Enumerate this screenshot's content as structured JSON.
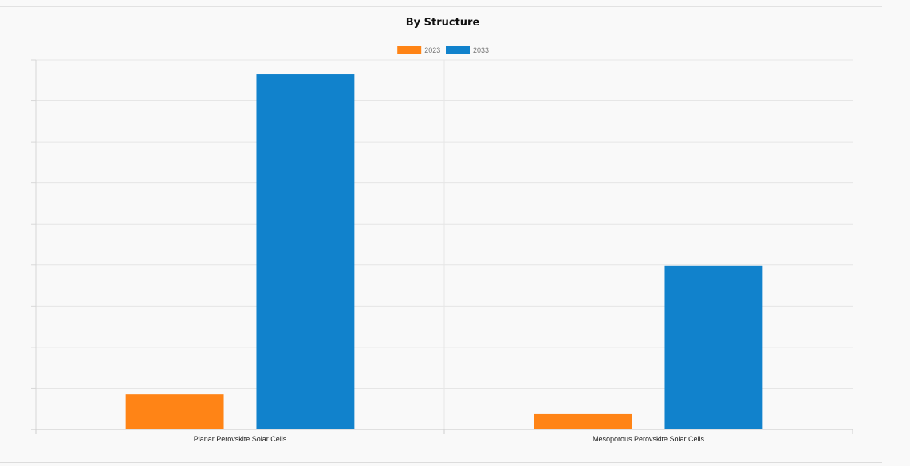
{
  "chart_data": {
    "type": "bar",
    "title": "By Structure",
    "categories": [
      "Planar Perovskite Solar Cells",
      "Mesoporous Perovskite Solar Cells"
    ],
    "series": [
      {
        "name": "2023",
        "color": "#ff8416",
        "values": [
          0.85,
          0.37
        ]
      },
      {
        "name": "2033",
        "color": "#1182cc",
        "values": [
          8.65,
          3.98
        ]
      }
    ],
    "xlabel": "",
    "ylabel": "",
    "ylim": [
      0,
      9
    ],
    "grid": true,
    "legend_position": "top-center",
    "y_tick_labels_shown": false
  }
}
